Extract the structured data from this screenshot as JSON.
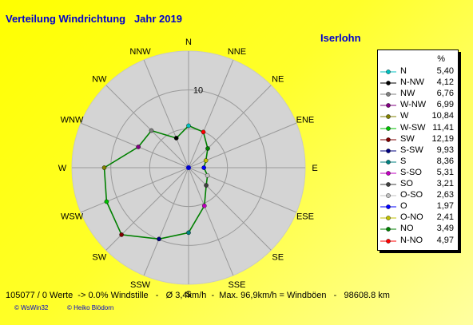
{
  "title": "Verteilung Windrichtung   Jahr 2019",
  "station": "Iserlohn",
  "chart_data": {
    "type": "radar",
    "directions": [
      "N",
      "NNE",
      "NE",
      "ENE",
      "E",
      "ESE",
      "SE",
      "SSE",
      "S",
      "SSW",
      "SW",
      "WSW",
      "W",
      "WNW",
      "NW",
      "NNW"
    ],
    "values": [
      5.4,
      4.97,
      3.49,
      2.41,
      1.97,
      2.63,
      3.21,
      5.31,
      8.36,
      9.93,
      12.19,
      11.41,
      10.84,
      6.99,
      6.76,
      4.12
    ],
    "axis_label": "10",
    "rmax": 15,
    "ring_step": 5,
    "line_color": "#008000"
  },
  "legend": {
    "header": "%",
    "items": [
      {
        "label": "N",
        "value": "5,40",
        "color": "#00c0c0"
      },
      {
        "label": "N-NW",
        "value": "4,12",
        "color": "#000000"
      },
      {
        "label": "NW",
        "value": "6,76",
        "color": "#808080"
      },
      {
        "label": "W-NW",
        "value": "6,99",
        "color": "#800080"
      },
      {
        "label": "W",
        "value": "10,84",
        "color": "#808000"
      },
      {
        "label": "W-SW",
        "value": "11,41",
        "color": "#00c000"
      },
      {
        "label": "SW",
        "value": "12,19",
        "color": "#800000"
      },
      {
        "label": "S-SW",
        "value": "9,93",
        "color": "#000080"
      },
      {
        "label": "S",
        "value": "8,36",
        "color": "#008080"
      },
      {
        "label": "S-SO",
        "value": "5,31",
        "color": "#c000c0"
      },
      {
        "label": "SO",
        "value": "3,21",
        "color": "#404040"
      },
      {
        "label": "O-SO",
        "value": "2,63",
        "color": "#c0c0c0"
      },
      {
        "label": "O",
        "value": "1,97",
        "color": "#0000ff"
      },
      {
        "label": "O-NO",
        "value": "2,41",
        "color": "#c0c000"
      },
      {
        "label": "NO",
        "value": "3,49",
        "color": "#008000"
      },
      {
        "label": "N-NO",
        "value": "4,97",
        "color": "#ff0000"
      }
    ]
  },
  "footer": "105077 / 0 Werte  -> 0.0% Windstille   -   Ø 3,4km/h  -  Max. 96,9km/h = Windböen   -   98608.8 km",
  "copyright": {
    "left": "© WsWin32",
    "right": "© Heiko Blödorn"
  }
}
